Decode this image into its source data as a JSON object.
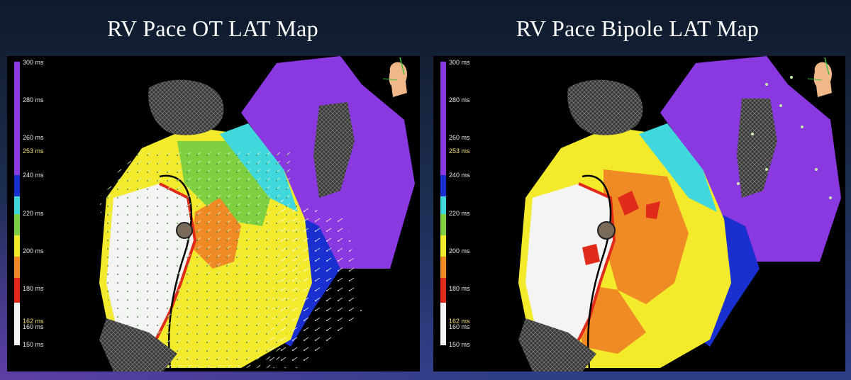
{
  "panels": [
    {
      "title": "RV Pace OT LAT Map",
      "scale": {
        "ticks": [
          "300 ms",
          "280 ms",
          "260 ms",
          "253 ms",
          "240 ms",
          "220 ms",
          "200 ms",
          "180 ms",
          "162 ms",
          "160 ms",
          "150 ms"
        ],
        "highlighted": [
          "253 ms",
          "162 ms"
        ]
      }
    },
    {
      "title": "RV Pace Bipole LAT Map",
      "scale": {
        "ticks": [
          "300 ms",
          "280 ms",
          "260 ms",
          "253 ms",
          "240 ms",
          "220 ms",
          "200 ms",
          "180 ms",
          "162 ms",
          "160 ms",
          "150 ms"
        ],
        "highlighted": [
          "253 ms",
          "162 ms"
        ]
      }
    }
  ],
  "colors": {
    "purple": "#8a38e0",
    "blue": "#1a2fd0",
    "cyan": "#40d8dc",
    "green": "#7ed040",
    "yellow": "#f2ea2a",
    "orange": "#f08a24",
    "red": "#e02a1a",
    "white": "#f4f4f4"
  },
  "icons": [
    "orientation-head-icon"
  ]
}
